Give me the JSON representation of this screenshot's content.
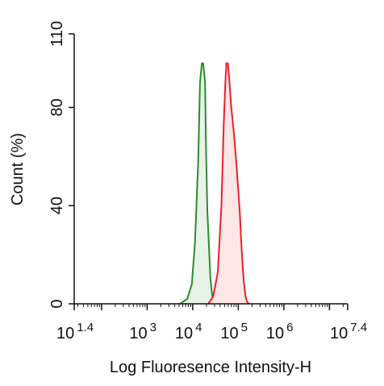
{
  "chart_data": {
    "type": "area",
    "title": "",
    "xlabel": "Log Fluoresence Intensity-H",
    "ylabel": "Count  (%)",
    "x_scale": "log",
    "xlim": [
      1.4,
      7.4
    ],
    "ylim": [
      0,
      110
    ],
    "grid": false,
    "x_ticks": [
      {
        "base": "10",
        "exp": "1.4",
        "value": 1.4
      },
      {
        "base": "10",
        "exp": "3",
        "value": 3
      },
      {
        "base": "10",
        "exp": "4",
        "value": 4
      },
      {
        "base": "10",
        "exp": "5",
        "value": 5
      },
      {
        "base": "10",
        "exp": "6",
        "value": 6
      },
      {
        "base": "10",
        "exp": "7.4",
        "value": 7.4
      }
    ],
    "y_ticks": [
      "0",
      "40",
      "80",
      "110"
    ],
    "y_tick_values": [
      0,
      40,
      80,
      110
    ],
    "series": [
      {
        "color": "#2e8b2e",
        "fill": "#e8f3e8",
        "x": [
          3.72,
          3.88,
          3.98,
          4.05,
          4.12,
          4.16,
          4.2,
          4.23,
          4.27,
          4.29,
          4.32,
          4.36,
          4.39,
          4.43,
          4.49,
          4.59
        ],
        "y": [
          0,
          2,
          8,
          25,
          58,
          90,
          98,
          98,
          90,
          65,
          38,
          22,
          10,
          3,
          0.5,
          0
        ]
      },
      {
        "color": "#e8202a",
        "fill": "#fde6e6",
        "x": [
          4.34,
          4.45,
          4.55,
          4.63,
          4.68,
          4.72,
          4.74,
          4.77,
          4.8,
          4.84,
          4.9,
          4.96,
          5.03,
          5.08,
          5.12,
          5.16,
          5.2,
          5.24
        ],
        "y": [
          0,
          3,
          13,
          40,
          73,
          92,
          98,
          98,
          92,
          81,
          70,
          57,
          38,
          20,
          9,
          3,
          0.5,
          0
        ]
      }
    ]
  }
}
